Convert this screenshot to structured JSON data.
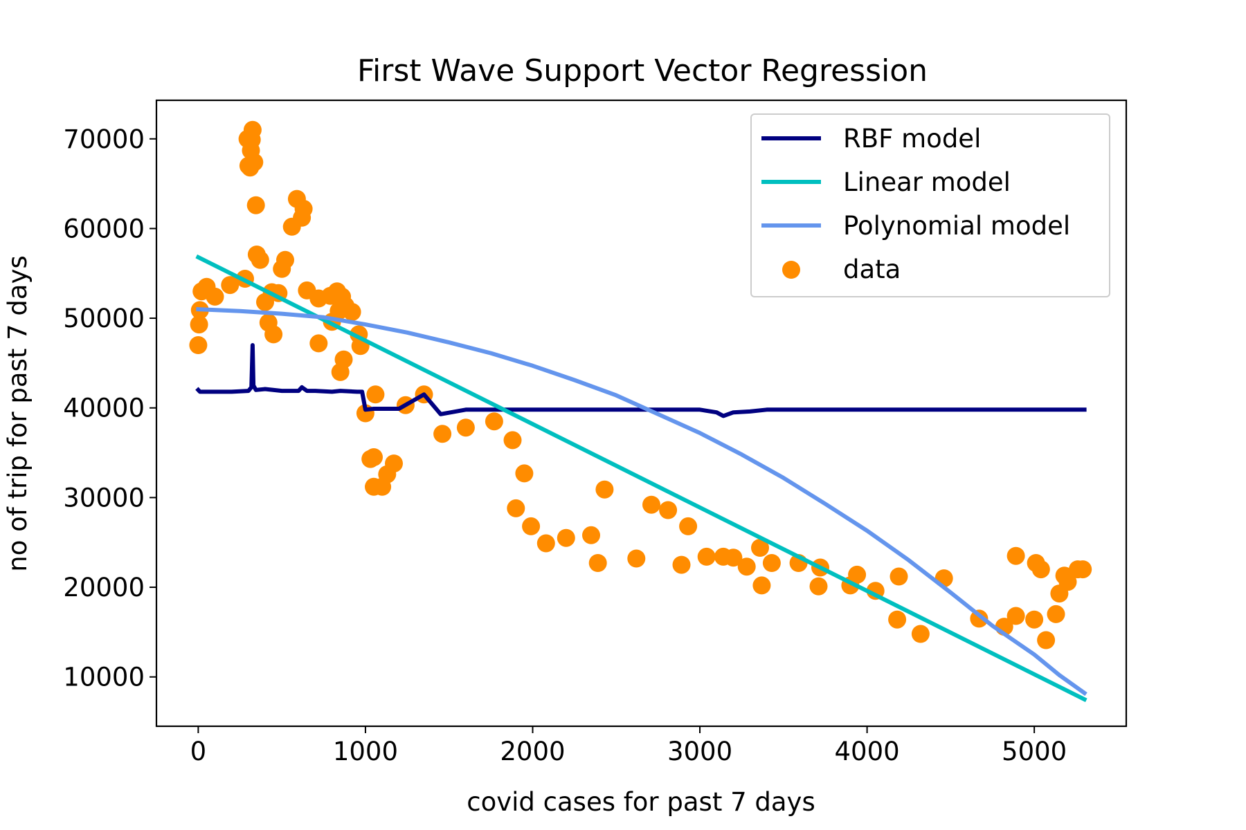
{
  "chart_data": {
    "type": "scatter",
    "title": "First Wave Support Vector Regression",
    "xlabel": "covid cases for past 7 days",
    "ylabel": "no of trip for past 7 days",
    "xlim": [
      -250,
      5550
    ],
    "ylim": [
      4500,
      74300
    ],
    "xticks": [
      0,
      1000,
      2000,
      3000,
      4000,
      5000
    ],
    "yticks": [
      10000,
      20000,
      30000,
      40000,
      50000,
      60000,
      70000
    ],
    "legend_position": "top-right",
    "series": [
      {
        "name": "RBF model",
        "kind": "line",
        "color": "#000080",
        "points": [
          [
            0,
            42000
          ],
          [
            10,
            41800
          ],
          [
            100,
            41800
          ],
          [
            200,
            41800
          ],
          [
            300,
            41900
          ],
          [
            318,
            42300
          ],
          [
            325,
            47000
          ],
          [
            330,
            42500
          ],
          [
            345,
            42000
          ],
          [
            400,
            42100
          ],
          [
            500,
            41900
          ],
          [
            600,
            41900
          ],
          [
            620,
            42300
          ],
          [
            650,
            41900
          ],
          [
            700,
            41900
          ],
          [
            800,
            41800
          ],
          [
            850,
            41900
          ],
          [
            950,
            41800
          ],
          [
            980,
            41800
          ],
          [
            1000,
            39800
          ],
          [
            1050,
            39900
          ],
          [
            1200,
            39900
          ],
          [
            1350,
            41500
          ],
          [
            1450,
            39300
          ],
          [
            1600,
            39800
          ],
          [
            1700,
            39800
          ],
          [
            2000,
            39800
          ],
          [
            2500,
            39800
          ],
          [
            2900,
            39800
          ],
          [
            2950,
            39800
          ],
          [
            3000,
            39800
          ],
          [
            3100,
            39500
          ],
          [
            3140,
            39100
          ],
          [
            3200,
            39500
          ],
          [
            3300,
            39600
          ],
          [
            3400,
            39800
          ],
          [
            4000,
            39800
          ],
          [
            5000,
            39800
          ],
          [
            5300,
            39800
          ]
        ]
      },
      {
        "name": "Linear model",
        "kind": "line",
        "color": "#00BFBF",
        "points": [
          [
            0,
            56800
          ],
          [
            5300,
            7500
          ]
        ]
      },
      {
        "name": "Polynomial model",
        "kind": "line",
        "color": "#6495ED",
        "points": [
          [
            0,
            51000
          ],
          [
            250,
            50800
          ],
          [
            500,
            50500
          ],
          [
            750,
            50100
          ],
          [
            1000,
            49300
          ],
          [
            1250,
            48400
          ],
          [
            1500,
            47300
          ],
          [
            1750,
            46100
          ],
          [
            2000,
            44700
          ],
          [
            2250,
            43100
          ],
          [
            2500,
            41400
          ],
          [
            2750,
            39300
          ],
          [
            3000,
            37200
          ],
          [
            3250,
            34800
          ],
          [
            3500,
            32200
          ],
          [
            3750,
            29300
          ],
          [
            4000,
            26300
          ],
          [
            4250,
            23000
          ],
          [
            4500,
            19400
          ],
          [
            4750,
            15700
          ],
          [
            5000,
            12500
          ],
          [
            5150,
            10200
          ],
          [
            5300,
            8200
          ]
        ]
      },
      {
        "name": "data",
        "kind": "scatter",
        "color": "#FF8C00",
        "points": [
          [
            0,
            47000
          ],
          [
            5,
            49300
          ],
          [
            10,
            50900
          ],
          [
            20,
            53000
          ],
          [
            50,
            53500
          ],
          [
            100,
            52400
          ],
          [
            190,
            53700
          ],
          [
            280,
            54400
          ],
          [
            295,
            70000
          ],
          [
            300,
            67000
          ],
          [
            310,
            66800
          ],
          [
            315,
            68700
          ],
          [
            320,
            69900
          ],
          [
            325,
            71000
          ],
          [
            335,
            67400
          ],
          [
            345,
            62600
          ],
          [
            350,
            57100
          ],
          [
            370,
            56500
          ],
          [
            400,
            51800
          ],
          [
            420,
            49500
          ],
          [
            440,
            52900
          ],
          [
            450,
            48200
          ],
          [
            480,
            52800
          ],
          [
            500,
            55500
          ],
          [
            520,
            56500
          ],
          [
            560,
            60200
          ],
          [
            590,
            63300
          ],
          [
            620,
            61200
          ],
          [
            630,
            62200
          ],
          [
            650,
            53100
          ],
          [
            720,
            52200
          ],
          [
            720,
            47200
          ],
          [
            790,
            52500
          ],
          [
            800,
            49600
          ],
          [
            830,
            53000
          ],
          [
            840,
            50800
          ],
          [
            850,
            44000
          ],
          [
            860,
            52400
          ],
          [
            870,
            45400
          ],
          [
            880,
            51400
          ],
          [
            920,
            50700
          ],
          [
            960,
            48200
          ],
          [
            970,
            46900
          ],
          [
            1000,
            39400
          ],
          [
            1030,
            34300
          ],
          [
            1050,
            34500
          ],
          [
            1050,
            31200
          ],
          [
            1060,
            41500
          ],
          [
            1100,
            31200
          ],
          [
            1130,
            32600
          ],
          [
            1170,
            33800
          ],
          [
            1240,
            40300
          ],
          [
            1350,
            41500
          ],
          [
            1460,
            37100
          ],
          [
            1600,
            37800
          ],
          [
            1770,
            38500
          ],
          [
            1880,
            36400
          ],
          [
            1900,
            28800
          ],
          [
            1950,
            32700
          ],
          [
            1990,
            26800
          ],
          [
            2080,
            24900
          ],
          [
            2200,
            25500
          ],
          [
            2350,
            25800
          ],
          [
            2390,
            22700
          ],
          [
            2430,
            30900
          ],
          [
            2620,
            23200
          ],
          [
            2710,
            29200
          ],
          [
            2810,
            28600
          ],
          [
            2890,
            22500
          ],
          [
            2930,
            26800
          ],
          [
            3040,
            23400
          ],
          [
            3140,
            23400
          ],
          [
            3200,
            23300
          ],
          [
            3280,
            22300
          ],
          [
            3360,
            24400
          ],
          [
            3370,
            20200
          ],
          [
            3430,
            22700
          ],
          [
            3590,
            22700
          ],
          [
            3710,
            20100
          ],
          [
            3720,
            22200
          ],
          [
            3900,
            20200
          ],
          [
            3940,
            21400
          ],
          [
            4050,
            19600
          ],
          [
            4180,
            16400
          ],
          [
            4190,
            21200
          ],
          [
            4320,
            14800
          ],
          [
            4460,
            21000
          ],
          [
            4670,
            16500
          ],
          [
            4820,
            15600
          ],
          [
            4890,
            23500
          ],
          [
            4890,
            16800
          ],
          [
            5000,
            16400
          ],
          [
            5010,
            22700
          ],
          [
            5040,
            22000
          ],
          [
            5070,
            14100
          ],
          [
            5130,
            17000
          ],
          [
            5150,
            19300
          ],
          [
            5180,
            21300
          ],
          [
            5200,
            20600
          ],
          [
            5260,
            22000
          ],
          [
            5290,
            22000
          ]
        ]
      }
    ]
  }
}
